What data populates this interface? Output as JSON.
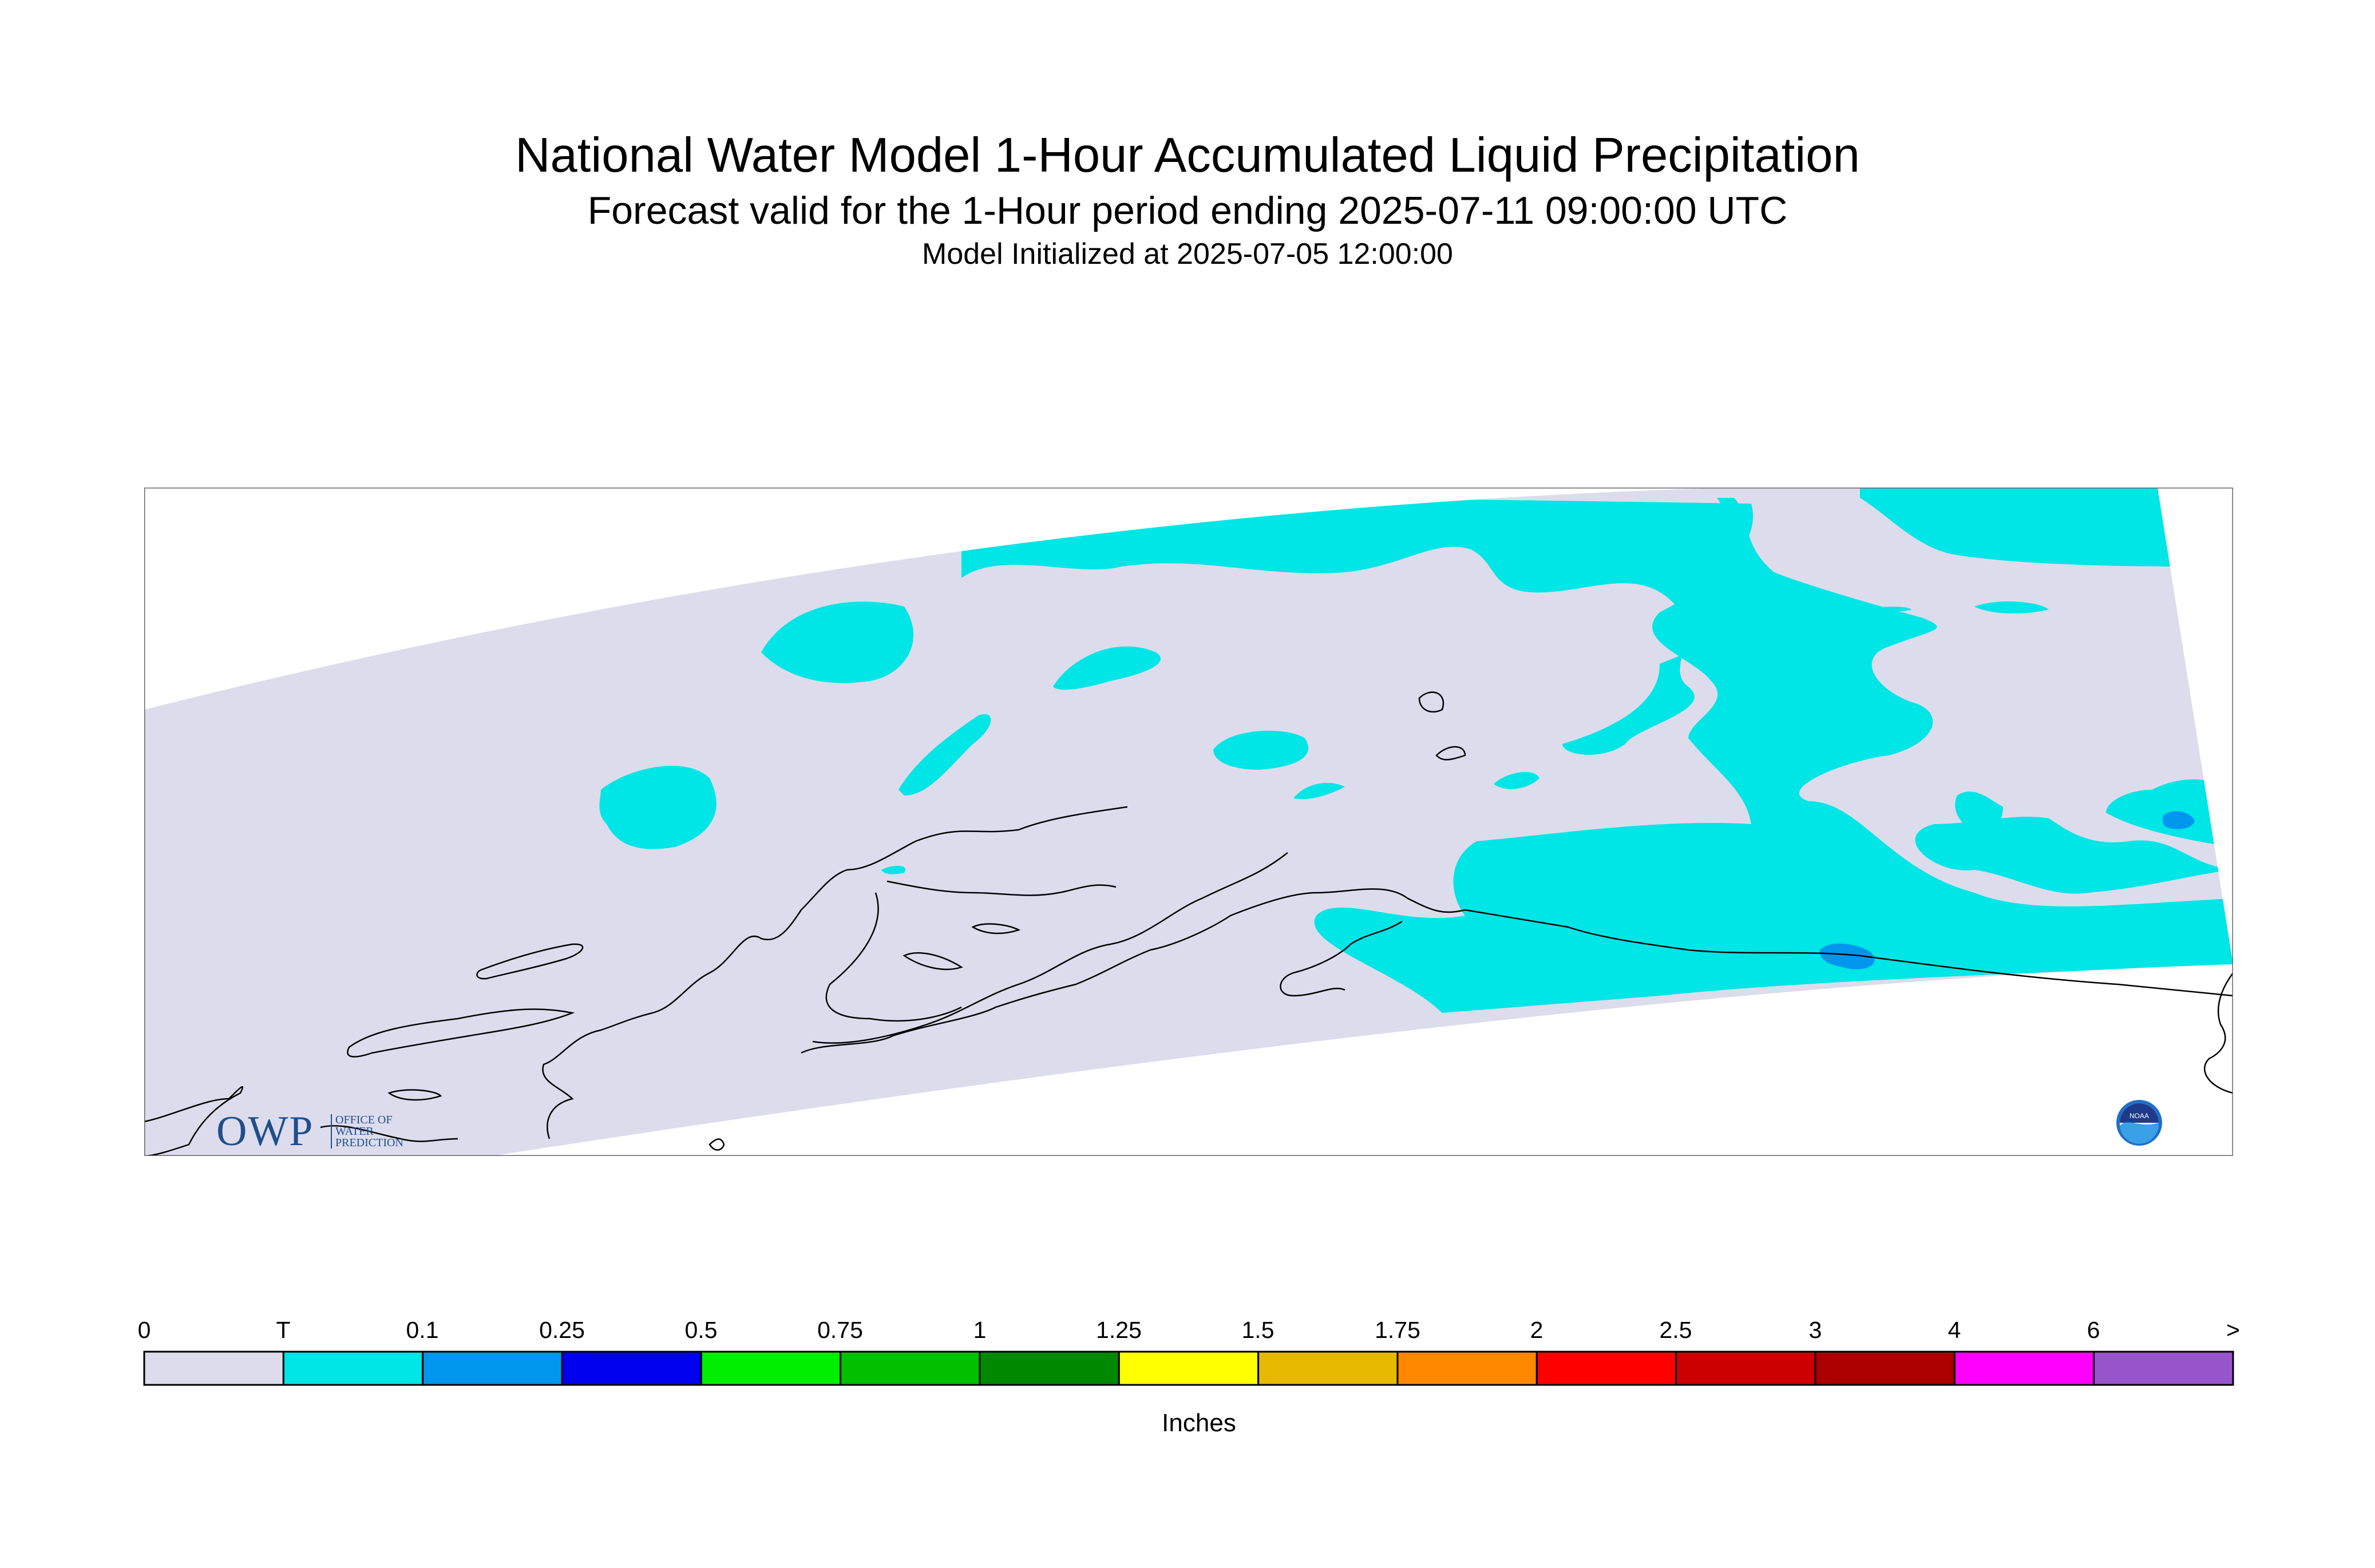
{
  "title": {
    "line1": "National Water Model 1-Hour Accumulated Liquid Precipitation",
    "line2": "Forecast valid for the 1-Hour period ending 2025-07-11 09:00:00 UTC",
    "line3": "Model Initialized at 2025-07-05 12:00:00"
  },
  "map": {
    "domain_fill_color": "#dcdcec",
    "trace_color": "#00e5e5",
    "light_color": "#0096ee",
    "coastline_color": "#000000"
  },
  "colorbar": {
    "unit": "Inches",
    "labels": [
      "0",
      "T",
      "0.1",
      "0.25",
      "0.5",
      "0.75",
      "1",
      "1.25",
      "1.5",
      "1.75",
      "2",
      "2.5",
      "3",
      "4",
      "6",
      ">"
    ],
    "colors": [
      "#dcdcec",
      "#00e5e5",
      "#0096ee",
      "#0000ee",
      "#00ee00",
      "#00c000",
      "#008800",
      "#ffff00",
      "#e6b800",
      "#ff8800",
      "#ff0000",
      "#cc0000",
      "#aa0000",
      "#ff00ff",
      "#9955cc"
    ]
  },
  "logos": {
    "owp_abbrev": "OWP",
    "owp_full": [
      "OFFICE OF",
      "WATER",
      "PREDICTION"
    ],
    "noaa_text": "NOAA"
  }
}
